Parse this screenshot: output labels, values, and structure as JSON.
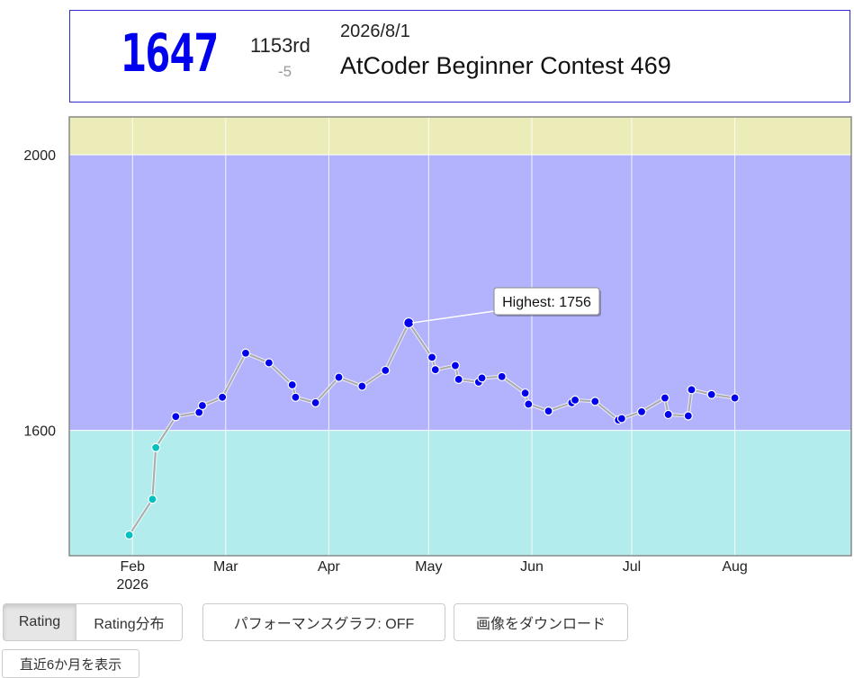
{
  "status": {
    "rating": "1647",
    "rank": "1153rd",
    "diff": "-5",
    "date": "2026/8/1",
    "contest": "AtCoder Beginner Contest 469"
  },
  "buttons": {
    "rating": "Rating",
    "rating_dist": "Rating分布",
    "perf_graph": "パフォーマンスグラフ: OFF",
    "download": "画像をダウンロード",
    "recent6": "直近6か月を表示"
  },
  "colors": {
    "band_yellow": "#ececb8",
    "band_blue": "#b3b3fd",
    "band_cyan": "#b3ecec",
    "point_blue": "#0000ee",
    "point_cyan": "#00c0c0",
    "line": "#aaaaaa"
  },
  "chart_data": {
    "type": "line",
    "title": "",
    "xlabel": "",
    "ylabel": "",
    "x_ticks": [
      "Feb\n2026",
      "Mar",
      "Apr",
      "May",
      "Jun",
      "Jul",
      "Aug"
    ],
    "y_ticks": [
      1600,
      2000
    ],
    "ylim": [
      1418,
      2055
    ],
    "xlim": [
      "2026-01-13",
      "2026-09-05"
    ],
    "grid": true,
    "bands": [
      {
        "from": 2000,
        "to": 2055,
        "color": "#ececb8"
      },
      {
        "from": 1600,
        "to": 2000,
        "color": "#b3b3fd"
      },
      {
        "from": 1418,
        "to": 1600,
        "color": "#b3ecec"
      }
    ],
    "annotation": {
      "text": "Highest: 1756",
      "date": "2026-04-26",
      "value": 1756
    },
    "series": [
      {
        "values": [
          {
            "date": "2026-01-31",
            "rating": 1448
          },
          {
            "date": "2026-02-07",
            "rating": 1500
          },
          {
            "date": "2026-02-08",
            "rating": 1575
          },
          {
            "date": "2026-02-14",
            "rating": 1620
          },
          {
            "date": "2026-02-21",
            "rating": 1626
          },
          {
            "date": "2026-02-22",
            "rating": 1636
          },
          {
            "date": "2026-02-28",
            "rating": 1648
          },
          {
            "date": "2026-03-07",
            "rating": 1712
          },
          {
            "date": "2026-03-14",
            "rating": 1698
          },
          {
            "date": "2026-03-21",
            "rating": 1666
          },
          {
            "date": "2026-03-22",
            "rating": 1648
          },
          {
            "date": "2026-03-28",
            "rating": 1640
          },
          {
            "date": "2026-04-04",
            "rating": 1677
          },
          {
            "date": "2026-04-11",
            "rating": 1664
          },
          {
            "date": "2026-04-18",
            "rating": 1687
          },
          {
            "date": "2026-04-25",
            "rating": 1756
          },
          {
            "date": "2026-05-02",
            "rating": 1706
          },
          {
            "date": "2026-05-03",
            "rating": 1688
          },
          {
            "date": "2026-05-09",
            "rating": 1694
          },
          {
            "date": "2026-05-10",
            "rating": 1674
          },
          {
            "date": "2026-05-16",
            "rating": 1670
          },
          {
            "date": "2026-05-17",
            "rating": 1676
          },
          {
            "date": "2026-05-23",
            "rating": 1678
          },
          {
            "date": "2026-05-30",
            "rating": 1654
          },
          {
            "date": "2026-05-31",
            "rating": 1638
          },
          {
            "date": "2026-06-06",
            "rating": 1628
          },
          {
            "date": "2026-06-13",
            "rating": 1640
          },
          {
            "date": "2026-06-14",
            "rating": 1644
          },
          {
            "date": "2026-06-20",
            "rating": 1642
          },
          {
            "date": "2026-06-27",
            "rating": 1615
          },
          {
            "date": "2026-06-28",
            "rating": 1617
          },
          {
            "date": "2026-07-04",
            "rating": 1627
          },
          {
            "date": "2026-07-11",
            "rating": 1647
          },
          {
            "date": "2026-07-12",
            "rating": 1623
          },
          {
            "date": "2026-07-18",
            "rating": 1621
          },
          {
            "date": "2026-07-19",
            "rating": 1659
          },
          {
            "date": "2026-07-25",
            "rating": 1652
          },
          {
            "date": "2026-08-01",
            "rating": 1647
          }
        ]
      }
    ]
  }
}
